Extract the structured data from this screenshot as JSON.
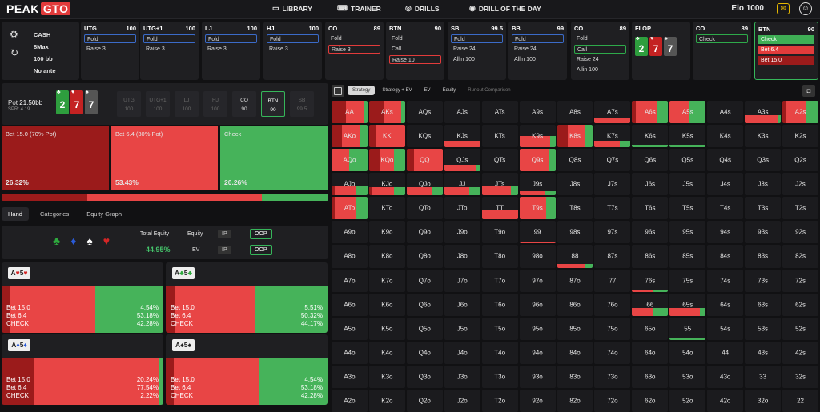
{
  "app": {
    "logo_a": "PEAK",
    "logo_b": "GTO"
  },
  "nav": [
    {
      "label": "LIBRARY",
      "icon": "library-icon",
      "glyph": "▭"
    },
    {
      "label": "TRAINER",
      "icon": "gamepad-icon",
      "glyph": "⌨"
    },
    {
      "label": "DRILLS",
      "icon": "drills-icon",
      "glyph": "◎"
    },
    {
      "label": "DRILL OF THE DAY",
      "icon": "drill-day-icon",
      "glyph": "◉"
    }
  ],
  "elo": "Elo 1000",
  "info": {
    "l1": "CASH",
    "l2": "8Max",
    "l3": "100 bb",
    "l4": "No ante"
  },
  "positions": [
    {
      "pos": "UTG",
      "stack": "100",
      "actions": [
        {
          "t": "Fold",
          "c": "sel-blue"
        },
        {
          "t": "Raise 3",
          "c": ""
        }
      ]
    },
    {
      "pos": "UTG+1",
      "stack": "100",
      "actions": [
        {
          "t": "Fold",
          "c": "sel-blue"
        },
        {
          "t": "Raise 3",
          "c": ""
        }
      ]
    },
    {
      "pos": "LJ",
      "stack": "100",
      "actions": [
        {
          "t": "Fold",
          "c": "sel-blue"
        },
        {
          "t": "Raise 3",
          "c": ""
        }
      ]
    },
    {
      "pos": "HJ",
      "stack": "100",
      "actions": [
        {
          "t": "Fold",
          "c": "sel-blue"
        },
        {
          "t": "Raise 3",
          "c": ""
        }
      ]
    },
    {
      "pos": "CO",
      "stack": "89",
      "actions": [
        {
          "t": "Fold",
          "c": ""
        },
        {
          "t": "Raise 3",
          "c": "sel-red"
        }
      ]
    },
    {
      "pos": "BTN",
      "stack": "90",
      "actions": [
        {
          "t": "Fold",
          "c": ""
        },
        {
          "t": "Call",
          "c": ""
        },
        {
          "t": "Raise 10",
          "c": "sel-red"
        }
      ]
    },
    {
      "pos": "SB",
      "stack": "99.5",
      "actions": [
        {
          "t": "Fold",
          "c": "sel-blue"
        },
        {
          "t": "Raise 24",
          "c": ""
        },
        {
          "t": "Allin 100",
          "c": ""
        }
      ]
    },
    {
      "pos": "BB",
      "stack": "99",
      "actions": [
        {
          "t": "Fold",
          "c": "sel-blue"
        },
        {
          "t": "Raise 24",
          "c": ""
        },
        {
          "t": "Allin 100",
          "c": ""
        }
      ]
    },
    {
      "pos": "CO",
      "stack": "89",
      "actions": [
        {
          "t": "Fold",
          "c": ""
        },
        {
          "t": "Call",
          "c": "sel-green"
        },
        {
          "t": "Raise 24",
          "c": ""
        },
        {
          "t": "Allin 100",
          "c": ""
        }
      ]
    },
    {
      "pos": "FLOP",
      "stack": "",
      "actions": []
    },
    {
      "pos": "CO",
      "stack": "89",
      "actions": [
        {
          "t": "Check",
          "c": "sel-green"
        }
      ]
    },
    {
      "pos": "BTN",
      "stack": "90",
      "actions": [
        {
          "t": "Check",
          "c": "fill-green"
        },
        {
          "t": "Bet 6.4",
          "c": "fill-red"
        },
        {
          "t": "Bet 15.0",
          "c": "fill-dred"
        }
      ],
      "active": true
    }
  ],
  "flop": [
    {
      "r": "2",
      "s": "♣",
      "c": "c-green"
    },
    {
      "r": "7",
      "s": "♥",
      "c": "c-red"
    },
    {
      "r": "7",
      "s": "♠",
      "c": "c-dgray"
    }
  ],
  "pot": {
    "label": "Pot",
    "value": "21.50bb",
    "spr": "SPR: 4.19"
  },
  "seats": [
    {
      "p": "UTG",
      "s": "100"
    },
    {
      "p": "UTG+1",
      "s": "100"
    },
    {
      "p": "LJ",
      "s": "100"
    },
    {
      "p": "HJ",
      "s": "100"
    },
    {
      "p": "CO",
      "s": "90",
      "on": true
    },
    {
      "p": "BTN",
      "s": "90",
      "btn": true
    },
    {
      "p": "SB",
      "s": "99.5"
    }
  ],
  "strategy": [
    {
      "label": "Bet 15.0 (70% Pot)",
      "pct": "26.32%",
      "color": "#9b1b1b",
      "frac": 0.2632
    },
    {
      "label": "Bet 6.4 (30% Pot)",
      "pct": "53.43%",
      "color": "#e84545",
      "frac": 0.5343
    },
    {
      "label": "Check",
      "pct": "20.26%",
      "color": "#46b35a",
      "frac": 0.2026
    }
  ],
  "tabs": [
    "Hand",
    "Categories",
    "Equity Graph"
  ],
  "equity": {
    "suits": [
      {
        "g": "♣",
        "c": "#2eaa3e",
        "n": "club-icon"
      },
      {
        "g": "♦",
        "c": "#2a5bd8",
        "n": "diamond-icon"
      },
      {
        "g": "♠",
        "c": "#ffffff",
        "n": "spade-icon"
      },
      {
        "g": "♥",
        "c": "#d52626",
        "n": "heart-icon"
      }
    ],
    "total_label": "Total Equity",
    "total": "44.95%",
    "eq_label": "Equity",
    "ev_label": "EV",
    "ip": "IP",
    "oop": "OOP"
  },
  "combos": [
    {
      "r1": "A",
      "s1": "♥",
      "c1": "#d52626",
      "r2": "5",
      "s2": "♥",
      "c2": "#d52626",
      "fr": [
        0.53,
        0.05,
        0.42
      ],
      "vals": [
        "4.54%",
        "53.18%",
        "42.28%"
      ]
    },
    {
      "r1": "A",
      "s1": "♣",
      "c1": "#2eaa3e",
      "r2": "5",
      "s2": "♣",
      "c2": "#2eaa3e",
      "fr": [
        0.5,
        0.055,
        0.445
      ],
      "vals": [
        "5.51%",
        "50.32%",
        "44.17%"
      ]
    },
    {
      "r1": "A",
      "s1": "♦",
      "c1": "#2a5bd8",
      "r2": "5",
      "s2": "♦",
      "c2": "#2a5bd8",
      "fr": [
        0.775,
        0.2,
        0.025
      ],
      "vals": [
        "20.24%",
        "77.54%",
        "2.22%"
      ]
    },
    {
      "r1": "A",
      "s1": "♠",
      "c1": "#222",
      "r2": "5",
      "s2": "♠",
      "c2": "#222",
      "fr": [
        0.53,
        0.05,
        0.42
      ],
      "vals": [
        "4.54%",
        "53.18%",
        "42.28%"
      ]
    }
  ],
  "combo_acts": [
    "Bet 15.0",
    "Bet 6.4",
    "CHECK"
  ],
  "grid_tabs": [
    "Strategy",
    "Strategy + EV",
    "EV",
    "Equity",
    "Runout Comparison"
  ],
  "ranks": [
    "A",
    "K",
    "Q",
    "J",
    "T",
    "9",
    "8",
    "7",
    "6",
    "5",
    "4",
    "3",
    "2"
  ],
  "cell_strats": {
    "AA": [
      1,
      0.4,
      0.5,
      0.1
    ],
    "AKs": [
      1,
      0.4,
      0.5,
      0.1
    ],
    "A7s": [
      0.2,
      0,
      1,
      0
    ],
    "A6s": [
      1,
      0.1,
      0.6,
      0.3
    ],
    "A5s": [
      1,
      0,
      0.55,
      0.45
    ],
    "A3s": [
      0.35,
      0,
      0.9,
      0.1
    ],
    "A2s": [
      1,
      0.1,
      0.55,
      0.35
    ],
    "AKo": [
      1,
      0.3,
      0.5,
      0.2
    ],
    "KK": [
      1,
      0.2,
      0.8,
      0
    ],
    "KJs": [
      0.3,
      0,
      1,
      0
    ],
    "K9s": [
      0.5,
      0,
      0.85,
      0.15
    ],
    "K8s": [
      1,
      0.3,
      0.5,
      0.2
    ],
    "K7s": [
      0.3,
      0,
      0.7,
      0.3
    ],
    "K6s": [
      0.1,
      0,
      0,
      1
    ],
    "K5s": [
      0.1,
      0,
      0,
      1
    ],
    "AQo": [
      1,
      0,
      0.5,
      0.5
    ],
    "KQo": [
      1,
      0.3,
      0.4,
      0.3
    ],
    "QQ": [
      1,
      0.2,
      0.8,
      0
    ],
    "QJs": [
      0.3,
      0,
      0.9,
      0.1
    ],
    "Q9s": [
      1,
      0,
      0.8,
      0.2
    ],
    "AJo": [
      0.4,
      0.1,
      0.6,
      0.3
    ],
    "KJo": [
      0.35,
      0.1,
      0.6,
      0.3
    ],
    "QJo": [
      0.35,
      0,
      0.7,
      0.3
    ],
    "JJ": [
      0.35,
      0,
      0.7,
      0.3
    ],
    "JTs": [
      0.45,
      0,
      0.8,
      0.2
    ],
    "J9s": [
      0.2,
      0,
      0.7,
      0.3
    ],
    "ATo": [
      1,
      0.1,
      0.6,
      0.3
    ],
    "TT": [
      0.4,
      0,
      1,
      0
    ],
    "T9s": [
      1,
      0,
      0.75,
      0.25
    ],
    "99": [
      0.1,
      0,
      1,
      0
    ],
    "88": [
      0.15,
      0,
      0.8,
      0.2
    ],
    "76s": [
      0.1,
      0,
      0.6,
      0.4
    ],
    "66": [
      0.35,
      0,
      0.6,
      0.4
    ],
    "65s": [
      0.35,
      0,
      0.85,
      0.15
    ],
    "55": [
      0.1,
      0,
      0,
      1
    ]
  }
}
